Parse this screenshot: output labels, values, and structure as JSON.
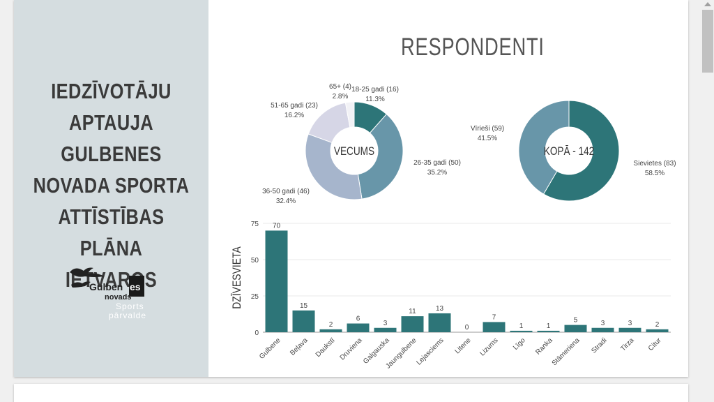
{
  "left": {
    "title_lines": [
      "IEDZĪVOTĀJU",
      "APTAUJA GULBENES",
      "NOVADA SPORTA",
      "ATTĪSTĪBAS PLĀNA",
      "IETVAROS"
    ],
    "logo": {
      "line1": "Gulben",
      "line1_tail": "es",
      "line2": "novads",
      "line3": "Sports",
      "line4": "pārvalde"
    }
  },
  "resp_title": "RESPONDENTI",
  "colors": {
    "teal": "#2d7578",
    "blue": "#6896a9",
    "light": "#a6b5cc",
    "lighter": "#d6d6e6",
    "pale": "#f2f2f6"
  },
  "chart_data": [
    {
      "type": "pie",
      "title": "VECUMS",
      "slices": [
        {
          "label": "18-25 gadi (16)",
          "pct": "11.3%",
          "value": 16
        },
        {
          "label": "26-35 gadi (50)",
          "pct": "35.2%",
          "value": 50
        },
        {
          "label": "36-50 gadi (46)",
          "pct": "32.4%",
          "value": 46
        },
        {
          "label": "51-65 gadi (23)",
          "pct": "16.2%",
          "value": 23
        },
        {
          "label": "65+ (4)",
          "pct": "2.8%",
          "value": 4
        }
      ]
    },
    {
      "type": "pie",
      "title": "KOPĀ - 142",
      "slices": [
        {
          "label": "Sievietes (83)",
          "pct": "58.5%",
          "value": 83
        },
        {
          "label": "Vīrieši (59)",
          "pct": "41.5%",
          "value": 59
        }
      ]
    },
    {
      "type": "bar",
      "ylabel": "DZĪVESVIETA",
      "ylim": [
        0,
        75
      ],
      "yticks": [
        0,
        25,
        50,
        75
      ],
      "categories": [
        "Gulbene",
        "Beļava",
        "Daukstī",
        "Druviena",
        "Galgauska",
        "Jaungulbene",
        "Lejasciems",
        "Litene",
        "Lizums",
        "Līgo",
        "Ranka",
        "Stāmeriena",
        "Stradi",
        "Tirza",
        "Citur"
      ],
      "values": [
        70,
        15,
        2,
        6,
        3,
        11,
        13,
        0,
        7,
        1,
        1,
        5,
        3,
        3,
        2
      ]
    }
  ]
}
